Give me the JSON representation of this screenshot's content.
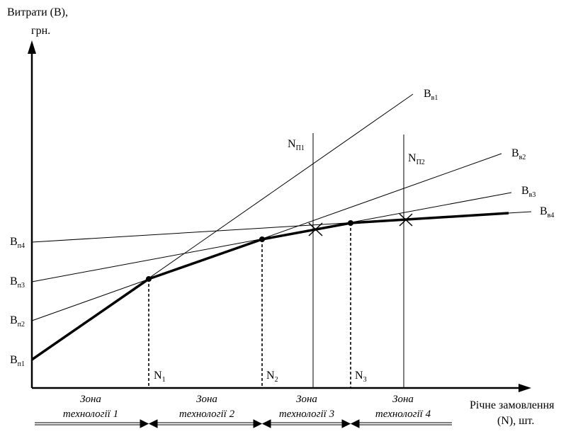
{
  "axes": {
    "y_title_line1": "Витрати (В),",
    "y_title_line2": "грн.",
    "x_title_line1": "Річне замовлення",
    "x_title_line2": "(N), шт."
  },
  "fixed_cost_labels": [
    {
      "main": "В",
      "sub": "п1"
    },
    {
      "main": "В",
      "sub": "п2"
    },
    {
      "main": "В",
      "sub": "п3"
    },
    {
      "main": "В",
      "sub": "п4"
    }
  ],
  "line_labels": [
    {
      "main": "В",
      "sub": "в1"
    },
    {
      "main": "В",
      "sub": "в2"
    },
    {
      "main": "В",
      "sub": "в3"
    },
    {
      "main": "В",
      "sub": "в4"
    }
  ],
  "breakpoints": [
    {
      "main": "N",
      "sub": "1"
    },
    {
      "main": "N",
      "sub": "2"
    },
    {
      "main": "N",
      "sub": "3"
    }
  ],
  "vertical_lines": [
    {
      "main": "N",
      "sub": "П1"
    },
    {
      "main": "N",
      "sub": "П2"
    }
  ],
  "zones": [
    {
      "line1": "Зона",
      "line2": "технології 1"
    },
    {
      "line1": "Зона",
      "line2": "технології 2"
    },
    {
      "line1": "Зона",
      "line2": "технології 3"
    },
    {
      "line1": "Зона",
      "line2": "технології 4"
    }
  ]
}
